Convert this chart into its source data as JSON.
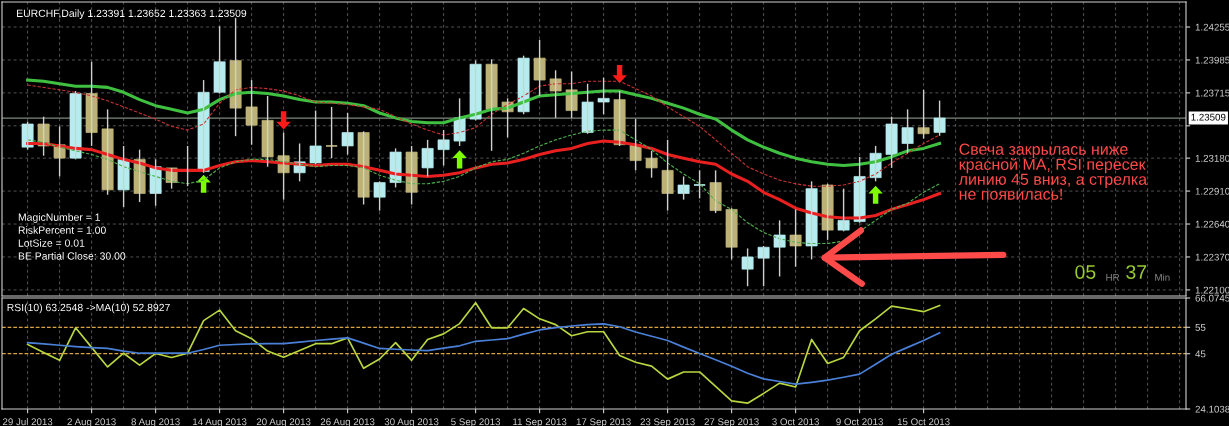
{
  "chart_data": [
    {
      "type": "candlestick",
      "title": "EURCHF,Daily 1.23391 1.23652 1.23363 1.23509",
      "categories": [
        null,
        null,
        null,
        null,
        null,
        null,
        null,
        null,
        null,
        null,
        null,
        null,
        null,
        null,
        null,
        null,
        null,
        null,
        null,
        null,
        null,
        null,
        null,
        null,
        null,
        null,
        null,
        null,
        null,
        null,
        null,
        null,
        null,
        null,
        null,
        null,
        null,
        null,
        null,
        null,
        null,
        null,
        null,
        null,
        null,
        null,
        null,
        null,
        null,
        null,
        null,
        null,
        null,
        null,
        null,
        null,
        null,
        null
      ],
      "ohlc": [
        [
          1.2327,
          1.2348,
          1.2325,
          1.2346
        ],
        [
          1.2346,
          1.2352,
          1.232,
          1.2328
        ],
        [
          1.2329,
          1.2344,
          1.2303,
          1.2318
        ],
        [
          1.2318,
          1.2373,
          1.2317,
          1.2371
        ],
        [
          1.2371,
          1.2397,
          1.2328,
          1.2339
        ],
        [
          1.2342,
          1.2358,
          1.2288,
          1.2292
        ],
        [
          1.2292,
          1.2328,
          1.2278,
          1.2317
        ],
        [
          1.2317,
          1.2325,
          1.2282,
          1.2289
        ],
        [
          1.2289,
          1.2317,
          1.2279,
          1.2311
        ],
        [
          1.231,
          1.231,
          1.2293,
          1.2298
        ],
        [
          1.2308,
          1.2328,
          1.2295,
          1.2307
        ],
        [
          1.2307,
          1.2382,
          1.2306,
          1.2372
        ],
        [
          1.2372,
          1.2426,
          1.2371,
          1.2397
        ],
        [
          1.2398,
          1.2433,
          1.2336,
          1.2359
        ],
        [
          1.236,
          1.2382,
          1.2329,
          1.2345
        ],
        [
          1.2349,
          1.2369,
          1.2311,
          1.2319
        ],
        [
          1.232,
          1.2339,
          1.2284,
          1.2306
        ],
        [
          1.2306,
          1.233,
          1.2299,
          1.2315
        ],
        [
          1.2314,
          1.2357,
          1.2313,
          1.2328
        ],
        [
          1.2328,
          1.236,
          1.2318,
          1.2328
        ],
        [
          1.2328,
          1.2355,
          1.2321,
          1.2339
        ],
        [
          1.2339,
          1.234,
          1.228,
          1.2286
        ],
        [
          1.2286,
          1.2299,
          1.2275,
          1.2298
        ],
        [
          1.2298,
          1.2326,
          1.2294,
          1.2323
        ],
        [
          1.2323,
          1.2328,
          1.228,
          1.229
        ],
        [
          1.231,
          1.2333,
          1.2303,
          1.2326
        ],
        [
          1.2325,
          1.2341,
          1.2312,
          1.2333
        ],
        [
          1.2332,
          1.2367,
          1.2328,
          1.2351
        ],
        [
          1.235,
          1.2398,
          1.2349,
          1.2395
        ],
        [
          1.2395,
          1.2399,
          1.2324,
          1.2358
        ],
        [
          1.2364,
          1.2367,
          1.2335,
          1.2356
        ],
        [
          1.2356,
          1.2402,
          1.2354,
          1.24
        ],
        [
          1.24,
          1.2415,
          1.2369,
          1.2382
        ],
        [
          1.2383,
          1.239,
          1.2351,
          1.2373
        ],
        [
          1.2374,
          1.2389,
          1.2351,
          1.2357
        ],
        [
          1.2339,
          1.2379,
          1.2338,
          1.2364
        ],
        [
          1.2364,
          1.2384,
          1.2354,
          1.2367
        ],
        [
          1.2366,
          1.2373,
          1.2328,
          1.2329
        ],
        [
          1.2329,
          1.235,
          1.2308,
          1.2316
        ],
        [
          1.2318,
          1.2324,
          1.2302,
          1.231
        ],
        [
          1.2308,
          1.2333,
          1.2275,
          1.2289
        ],
        [
          1.2289,
          1.2303,
          1.2284,
          1.2296
        ],
        [
          1.2296,
          1.2308,
          1.2285,
          1.2296
        ],
        [
          1.2298,
          1.2308,
          1.2273,
          1.2275
        ],
        [
          1.2276,
          1.2277,
          1.2235,
          1.2245
        ],
        [
          1.2227,
          1.2244,
          1.2213,
          1.2237
        ],
        [
          1.2236,
          1.2246,
          1.2213,
          1.2245
        ],
        [
          1.2245,
          1.2267,
          1.2221,
          1.2255
        ],
        [
          1.2255,
          1.2276,
          1.2229,
          1.2246
        ],
        [
          1.2246,
          1.2299,
          1.2235,
          1.2293
        ],
        [
          1.2296,
          1.2297,
          1.2251,
          1.2259
        ],
        [
          1.2259,
          1.2293,
          1.2258,
          1.2267
        ],
        [
          1.2266,
          1.2319,
          1.2265,
          1.2303
        ],
        [
          1.2302,
          1.2328,
          1.2299,
          1.2322
        ],
        [
          1.2321,
          1.2352,
          1.231,
          1.2346
        ],
        [
          1.233,
          1.2358,
          1.2322,
          1.2343
        ],
        [
          1.2343,
          1.2374,
          1.2334,
          1.2338
        ],
        [
          1.23391,
          1.23652,
          1.23363,
          1.23509
        ]
      ],
      "colors": [
        "#b4ecf0",
        "#bdb176",
        "#bdb176",
        "#b4ecf0",
        "#bdb176",
        "#bdb176",
        "#b4ecf0",
        "#bdb176",
        "#b4ecf0",
        "#bdb176",
        "#bdb176",
        "#b4ecf0",
        "#b4ecf0",
        "#bdb176",
        "#bdb176",
        "#bdb176",
        "#bdb176",
        "#b4ecf0",
        "#b4ecf0",
        "#bdb176",
        "#b4ecf0",
        "#bdb176",
        "#b4ecf0",
        "#b4ecf0",
        "#bdb176",
        "#b4ecf0",
        "#b4ecf0",
        "#b4ecf0",
        "#b4ecf0",
        "#bdb176",
        "#bdb176",
        "#b4ecf0",
        "#bdb176",
        "#bdb176",
        "#bdb176",
        "#b4ecf0",
        "#b4ecf0",
        "#bdb176",
        "#bdb176",
        "#bdb176",
        "#bdb176",
        "#b4ecf0",
        "#b4ecf0",
        "#bdb176",
        "#bdb176",
        "#b4ecf0",
        "#b4ecf0",
        "#b4ecf0",
        "#bdb176",
        "#b4ecf0",
        "#bdb176",
        "#b4ecf0",
        "#b4ecf0",
        "#b4ecf0",
        "#b4ecf0",
        "#b4ecf0",
        "#bdb176",
        "#b4ecf0"
      ],
      "series": [
        {
          "type": "line",
          "color": "#40c040",
          "line_style": "solid",
          "values": [
            1.2382,
            1.2381,
            1.2379,
            1.2377,
            1.2377,
            1.2376,
            1.2372,
            1.2366,
            1.2361,
            1.2358,
            1.2355,
            1.2358,
            1.2366,
            1.2371,
            1.2372,
            1.2371,
            1.2369,
            1.2366,
            1.2364,
            1.2364,
            1.2363,
            1.2361,
            1.2355,
            1.2351,
            1.2348,
            1.2347,
            1.2347,
            1.2351,
            1.2354,
            1.2358,
            1.2359,
            1.2364,
            1.2369,
            1.237,
            1.2371,
            1.2372,
            1.2373,
            1.2373,
            1.237,
            1.2367,
            1.2363,
            1.2359,
            1.2354,
            1.235,
            1.2341,
            1.2333,
            1.2327,
            1.2322,
            1.2318,
            1.2315,
            1.2313,
            1.2312,
            1.2313,
            1.2315,
            1.2319,
            1.2324,
            1.2326,
            1.233
          ]
        },
        {
          "type": "line",
          "color": "#e82020",
          "line_style": "solid",
          "values": [
            1.233,
            1.233,
            1.2328,
            1.2326,
            1.2325,
            1.2321,
            1.2317,
            1.2314,
            1.231,
            1.2308,
            1.2308,
            1.2308,
            1.2312,
            1.2315,
            1.2316,
            1.2315,
            1.2314,
            1.2313,
            1.2312,
            1.2313,
            1.2313,
            1.2311,
            1.2308,
            1.2305,
            1.2304,
            1.2303,
            1.2304,
            1.2306,
            1.231,
            1.2313,
            1.2314,
            1.2317,
            1.2321,
            1.2324,
            1.2326,
            1.233,
            1.2332,
            1.2331,
            1.2329,
            1.2326,
            1.2321,
            1.2318,
            1.2315,
            1.2313,
            1.2305,
            1.2299,
            1.229,
            1.2284,
            1.2277,
            1.2273,
            1.227,
            1.2269,
            1.2269,
            1.2271,
            1.2276,
            1.228,
            1.2284,
            1.2289
          ]
        },
        {
          "type": "line",
          "color": "#c83232",
          "line_style": "dashed",
          "values": [
            1.2378,
            1.2376,
            1.2374,
            1.2372,
            1.2369,
            1.2365,
            1.236,
            1.2355,
            1.235,
            1.2344,
            1.2341,
            1.2346,
            1.2363,
            1.2374,
            1.2376,
            1.2375,
            1.2373,
            1.2369,
            1.2364,
            1.2363,
            1.2362,
            1.236,
            1.2358,
            1.2352,
            1.2346,
            1.2341,
            1.2337,
            1.2339,
            1.2343,
            1.2354,
            1.2362,
            1.2369,
            1.2377,
            1.2379,
            1.2379,
            1.2381,
            1.2381,
            1.2381,
            1.2375,
            1.2369,
            1.236,
            1.2352,
            1.2344,
            1.2333,
            1.2322,
            1.2311,
            1.2305,
            1.23,
            1.2297,
            1.2295,
            1.2295,
            1.2296,
            1.2299,
            1.2305,
            1.2314,
            1.2322,
            1.233,
            1.2337
          ]
        },
        {
          "type": "line",
          "color": "#50b050",
          "line_style": "dashed",
          "values": [
            1.2333,
            1.2331,
            1.2327,
            1.2324,
            1.2321,
            1.2317,
            1.2311,
            1.2307,
            1.2303,
            1.2299,
            1.2297,
            1.23,
            1.231,
            1.2315,
            1.2317,
            1.2317,
            1.2315,
            1.2313,
            1.2311,
            1.2312,
            1.2312,
            1.231,
            1.2304,
            1.23,
            1.2297,
            1.2297,
            1.2299,
            1.2303,
            1.231,
            1.2315,
            1.2317,
            1.2322,
            1.2328,
            1.2333,
            1.2337,
            1.234,
            1.2341,
            1.2341,
            1.2333,
            1.2325,
            1.2314,
            1.2305,
            1.2297,
            1.2283,
            1.2276,
            1.2265,
            1.2257,
            1.2252,
            1.2249,
            1.2248,
            1.2248,
            1.225,
            1.2258,
            1.2267,
            1.2276,
            1.2281,
            1.229,
            1.2297
          ]
        },
        {
          "type": "scatter",
          "marker": "triangle",
          "color": "#7cfc00",
          "values": [
            null,
            null,
            null,
            null,
            null,
            null,
            null,
            null,
            null,
            null,
            null,
            1.2297,
            null,
            null,
            null,
            null,
            null,
            null,
            null,
            null,
            null,
            null,
            null,
            null,
            null,
            null,
            null,
            1.2317,
            null,
            null,
            null,
            null,
            null,
            null,
            null,
            null,
            null,
            null,
            null,
            null,
            null,
            null,
            null,
            null,
            null,
            null,
            null,
            null,
            null,
            null,
            null,
            null,
            null,
            1.2288,
            null,
            null,
            null,
            null
          ]
        },
        {
          "type": "scatter",
          "marker": "triangle",
          "color": "#ff1a1a",
          "values": [
            null,
            null,
            null,
            null,
            null,
            null,
            null,
            null,
            null,
            null,
            null,
            null,
            null,
            null,
            null,
            null,
            1.2349,
            null,
            null,
            null,
            null,
            null,
            null,
            null,
            null,
            null,
            null,
            null,
            null,
            null,
            null,
            null,
            null,
            null,
            null,
            null,
            null,
            1.2387,
            null,
            null,
            null,
            null,
            null,
            null,
            null,
            null,
            null,
            null,
            null,
            null,
            null,
            null,
            null,
            null,
            null,
            null,
            null,
            null
          ]
        }
      ],
      "ylim": [
        1.2205,
        1.2446
      ],
      "yticks": [
        {
          "value": 1.221,
          "label": "1.22100"
        },
        {
          "value": 1.2237,
          "label": "1.22370"
        },
        {
          "value": 1.2264,
          "label": "1.22640"
        },
        {
          "value": 1.2291,
          "label": "1.22910"
        },
        {
          "value": 1.2318,
          "label": "1.23180"
        },
        {
          "value": 1.23445,
          "label": null
        },
        1.23715,
        1.23985,
        1.24255
      ],
      "ref_lines": [
        {
          "axis": "y",
          "value": 1.23509,
          "label": "1.23509",
          "color": "#7a8a7a",
          "line_style": "solid"
        }
      ],
      "annotations": [
        "MagicNumber = 1",
        "RiskPercent = 1.00",
        "LotSize = 0.01",
        "BE Partial Close: 30.00",
        "Свеча закрылась ниже\nкрасной MA, RSI пересек\nлинию 45 вниз, а стрелка\nне появилась!",
        "05",
        "HR",
        "37",
        "Min"
      ],
      "grid": true,
      "tick_labels": "y"
    },
    {
      "type": "line",
      "title": "RSI(10) 63.2548 ->MA(10) 52.8927",
      "categories": [
        "29 Jul 2013",
        null,
        null,
        null,
        "2 Aug 2013",
        null,
        null,
        null,
        "8 Aug 2013",
        null,
        null,
        null,
        "14 Aug 2013",
        null,
        null,
        null,
        "20 Aug 2013",
        null,
        null,
        null,
        "26 Aug 2013",
        null,
        null,
        null,
        "30 Aug 2013",
        null,
        null,
        null,
        "5 Sep 2013",
        null,
        null,
        null,
        "11 Sep 2013",
        null,
        null,
        null,
        "17 Sep 2013",
        null,
        null,
        null,
        "23 Sep 2013",
        null,
        null,
        null,
        "27 Sep 2013",
        null,
        null,
        null,
        "3 Oct 2013",
        null,
        null,
        null,
        "9 Oct 2013",
        null,
        null,
        null,
        "15 Oct 2013",
        null
      ],
      "series": [
        {
          "color": "#b8d640",
          "values": [
            48.5,
            45.5,
            42.5,
            54.8,
            47.4,
            40.0,
            45.2,
            40.7,
            45.1,
            43.6,
            45.2,
            57.5,
            61.5,
            53.7,
            50.7,
            46.0,
            43.7,
            46.2,
            48.8,
            48.8,
            51.0,
            39.5,
            43.0,
            49.2,
            42.5,
            50.4,
            52.5,
            56.4,
            64.3,
            54.8,
            54.8,
            62.1,
            58.2,
            56.0,
            51.8,
            53.3,
            53.3,
            44.3,
            41.8,
            40.3,
            35.4,
            38.1,
            38.1,
            32.7,
            27.2,
            26.3,
            30.0,
            33.9,
            32.4,
            50.4,
            41.3,
            43.6,
            53.7,
            58.2,
            63.0,
            62.0,
            60.9,
            63.2548
          ]
        },
        {
          "color": "#4a80d8",
          "values": [
            49.2,
            48.7,
            48.2,
            47.7,
            47.3,
            47.0,
            46.0,
            45.2,
            45.2,
            45.2,
            45.2,
            46.6,
            48.2,
            48.5,
            48.7,
            48.8,
            48.8,
            49.4,
            50.0,
            50.5,
            51.0,
            49.0,
            47.0,
            46.7,
            46.4,
            46.2,
            47.1,
            48.0,
            49.7,
            50.2,
            50.7,
            52.4,
            54.0,
            54.9,
            55.5,
            56.0,
            56.3,
            55.2,
            53.2,
            51.6,
            50.0,
            47.5,
            45.1,
            42.7,
            40.3,
            37.6,
            35.5,
            34.5,
            33.5,
            34.2,
            35.0,
            36.1,
            37.3,
            41.0,
            44.8,
            47.4,
            50.0,
            52.8927
          ]
        }
      ],
      "ylim": [
        24.1038,
        66.0745
      ],
      "yticks": [
        24.1038,
        45,
        55,
        66.0745
      ],
      "ref_lines": [
        {
          "axis": "y",
          "value": 55,
          "color": "#d9a441",
          "line_style": "dashed"
        },
        {
          "axis": "y",
          "value": 45,
          "color": "#d9a441",
          "line_style": "dashed"
        }
      ],
      "grid": "x"
    }
  ]
}
